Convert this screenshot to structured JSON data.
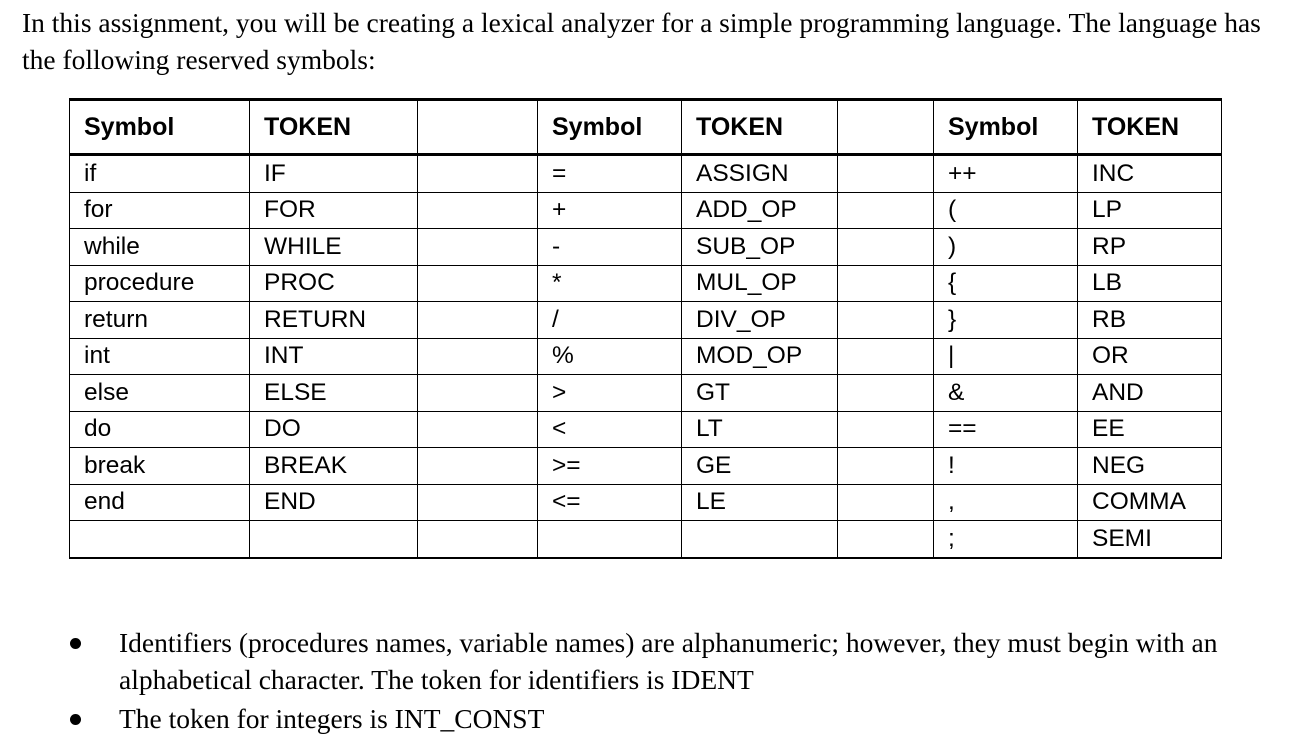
{
  "intro": "In this assignment, you will be creating a lexical analyzer for a simple programming language. The language has the following reserved symbols:",
  "table": {
    "headers": {
      "symbol": "Symbol",
      "token": "TOKEN"
    },
    "rows": [
      [
        "if",
        "IF",
        "=",
        "ASSIGN",
        "++",
        "INC"
      ],
      [
        "for",
        "FOR",
        "+",
        "ADD_OP",
        "(",
        "LP"
      ],
      [
        "while",
        "WHILE",
        "-",
        "SUB_OP",
        ")",
        "RP"
      ],
      [
        "procedure",
        "PROC",
        "*",
        "MUL_OP",
        "{",
        "LB"
      ],
      [
        "return",
        "RETURN",
        "/",
        "DIV_OP",
        "}",
        "RB"
      ],
      [
        "int",
        "INT",
        "%",
        "MOD_OP",
        "|",
        "OR"
      ],
      [
        "else",
        "ELSE",
        ">",
        "GT",
        "&",
        "AND"
      ],
      [
        "do",
        "DO",
        "<",
        "LT",
        "==",
        "EE"
      ],
      [
        "break",
        "BREAK",
        ">=",
        "GE",
        "!",
        "NEG"
      ],
      [
        "end",
        "END",
        "<=",
        "LE",
        ",",
        "COMMA"
      ],
      [
        "",
        "",
        "",
        "",
        ";",
        "SEMI"
      ]
    ]
  },
  "bullets": [
    "Identifiers (procedures names, variable names) are alphanumeric; however, they must begin with an alphabetical character. The token for identifiers is IDENT",
    "The token for integers is INT_CONST"
  ]
}
